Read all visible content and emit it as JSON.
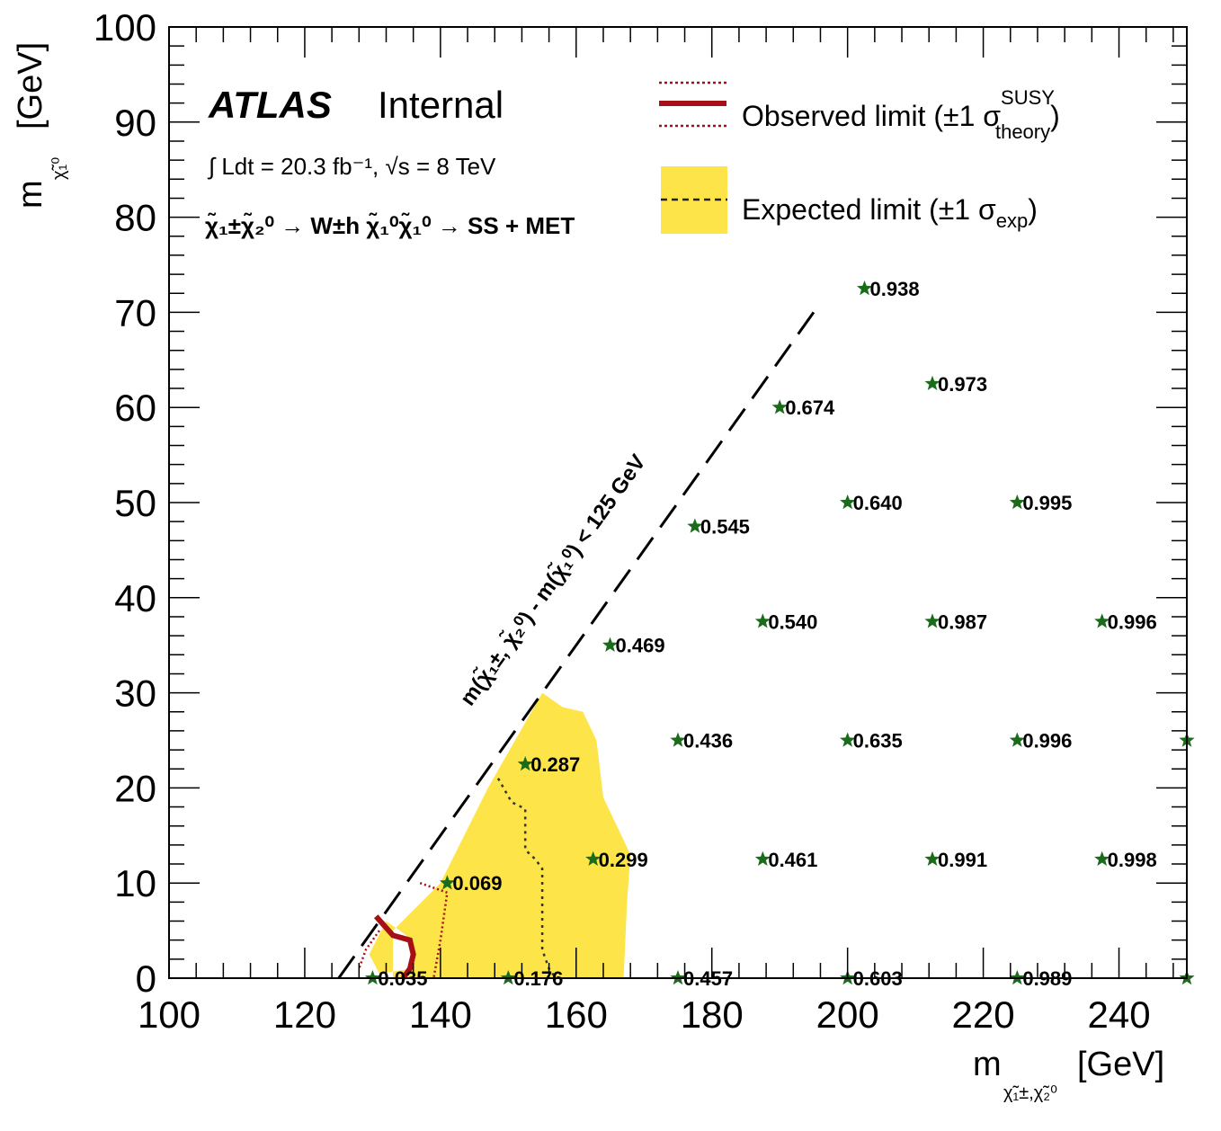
{
  "chart_data": {
    "type": "scatter",
    "xlabel": "m",
    "xlabel_sub": "χ̃₁±,χ̃₂⁰",
    "xlabel_unit": "[GeV]",
    "ylabel": "m",
    "ylabel_sub": "χ̃₁⁰",
    "ylabel_unit": "[GeV]",
    "xlim": [
      100,
      250
    ],
    "ylim": [
      0,
      100
    ],
    "x_ticks": [
      100,
      120,
      140,
      160,
      180,
      200,
      220,
      240
    ],
    "y_ticks": [
      0,
      10,
      20,
      30,
      40,
      50,
      60,
      70,
      80,
      90,
      100
    ],
    "grid": false,
    "legend_position": "top-right",
    "annotations": {
      "atlas": "ATLAS",
      "internal": "Internal",
      "lumi": "∫ Ldt = 20.3 fb⁻¹, √s = 8 TeV",
      "process": "χ̃₁±χ̃₂⁰ → W±h χ̃₁⁰χ̃₁⁰ → SS + MET",
      "diagonal": "m(χ̃₁±, χ̃₂⁰) - m(χ̃₁⁰) < 125 GeV"
    },
    "legend": [
      {
        "label": "Observed limit (±1 σ",
        "sup": "SUSY",
        "sub": "theory",
        "close": ")",
        "color": "#a50f15"
      },
      {
        "label": "Expected limit (±1 σ",
        "sub": "exp",
        "close": ")",
        "color": "#222222",
        "band_color": "#fde449"
      }
    ],
    "points": [
      {
        "x": 130,
        "y": 0,
        "label": "0.035"
      },
      {
        "x": 150,
        "y": 0,
        "label": "0.176"
      },
      {
        "x": 175,
        "y": 0,
        "label": "0.457"
      },
      {
        "x": 200,
        "y": 0,
        "label": "0.603"
      },
      {
        "x": 225,
        "y": 0,
        "label": "0.989"
      },
      {
        "x": 250,
        "y": 0,
        "label": ""
      },
      {
        "x": 141,
        "y": 10,
        "label": "0.069"
      },
      {
        "x": 162.5,
        "y": 12.5,
        "label": "0.299"
      },
      {
        "x": 187.5,
        "y": 12.5,
        "label": "0.461"
      },
      {
        "x": 212.5,
        "y": 12.5,
        "label": "0.991"
      },
      {
        "x": 237.5,
        "y": 12.5,
        "label": "0.998"
      },
      {
        "x": 152.5,
        "y": 22.5,
        "label": "0.287"
      },
      {
        "x": 175,
        "y": 25,
        "label": "0.436"
      },
      {
        "x": 200,
        "y": 25,
        "label": "0.635"
      },
      {
        "x": 225,
        "y": 25,
        "label": "0.996"
      },
      {
        "x": 250,
        "y": 25,
        "label": ""
      },
      {
        "x": 165,
        "y": 35,
        "label": "0.469"
      },
      {
        "x": 187.5,
        "y": 37.5,
        "label": "0.540"
      },
      {
        "x": 212.5,
        "y": 37.5,
        "label": "0.987"
      },
      {
        "x": 237.5,
        "y": 37.5,
        "label": "0.996"
      },
      {
        "x": 177.5,
        "y": 47.5,
        "label": "0.545"
      },
      {
        "x": 200,
        "y": 50,
        "label": "0.640"
      },
      {
        "x": 225,
        "y": 50,
        "label": "0.995"
      },
      {
        "x": 190,
        "y": 60,
        "label": "0.674"
      },
      {
        "x": 212.5,
        "y": 62.5,
        "label": "0.973"
      },
      {
        "x": 202.5,
        "y": 72.5,
        "label": "0.938"
      }
    ],
    "kinematic_line": [
      [
        125,
        0
      ],
      [
        195,
        70
      ]
    ],
    "expected_band": [
      [
        133,
        0
      ],
      [
        133,
        5
      ],
      [
        140,
        10
      ],
      [
        147,
        20
      ],
      [
        155,
        30
      ],
      [
        158,
        28.5
      ],
      [
        161,
        28
      ],
      [
        163,
        25
      ],
      [
        164,
        19
      ],
      [
        168,
        13
      ],
      [
        167.5,
        8
      ],
      [
        167,
        0
      ]
    ],
    "expected_band_hole": [
      [
        129.5,
        2.5
      ],
      [
        132,
        6
      ],
      [
        135,
        4.5
      ],
      [
        136,
        1
      ],
      [
        131,
        0.5
      ]
    ],
    "expected_limit": [
      [
        148.5,
        21
      ],
      [
        150.5,
        18.5
      ],
      [
        152.5,
        17.8
      ],
      [
        152.5,
        13.5
      ],
      [
        154,
        12.5
      ],
      [
        155,
        11.5
      ],
      [
        155,
        3
      ],
      [
        156,
        1
      ],
      [
        157,
        0
      ]
    ],
    "observed_limit": [
      [
        130.5,
        6.5
      ],
      [
        133,
        4.5
      ],
      [
        135.5,
        4
      ],
      [
        136,
        2.5
      ],
      [
        135.5,
        1
      ],
      [
        134.5,
        0
      ]
    ],
    "observed_plus": [
      [
        131,
        5
      ],
      [
        129,
        3
      ],
      [
        128,
        1
      ]
    ],
    "observed_minus": [
      [
        137,
        10
      ],
      [
        141,
        9
      ],
      [
        140,
        4
      ],
      [
        139,
        0
      ]
    ]
  }
}
